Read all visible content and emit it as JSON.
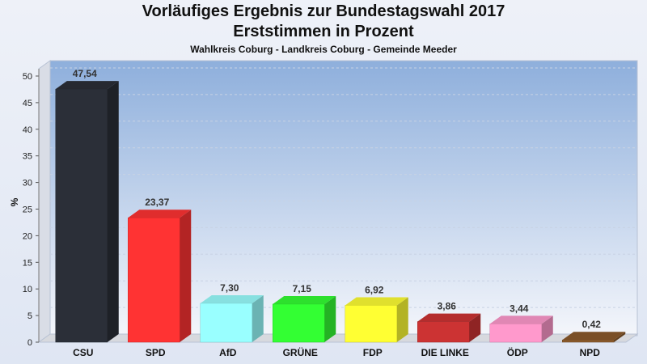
{
  "chart_data": {
    "type": "bar",
    "title": "Vorläufiges Ergebnis zur Bundestagswahl 2017",
    "subtitle": "Erststimmen in Prozent",
    "subsubtitle": "Wahlkreis Coburg - Landkreis Coburg - Gemeinde Meeder",
    "ylabel": "%",
    "ylim": [
      0,
      50
    ],
    "yticks": [
      0,
      5,
      10,
      15,
      20,
      25,
      30,
      35,
      40,
      45,
      50
    ],
    "grid": true,
    "categories": [
      "CSU",
      "SPD",
      "AfD",
      "GRÜNE",
      "FDP",
      "DIE LINKE",
      "ÖDP",
      "NPD"
    ],
    "values": [
      47.54,
      23.37,
      7.3,
      7.15,
      6.92,
      3.86,
      3.44,
      0.42
    ],
    "value_labels": [
      "47,54",
      "23,37",
      "7,30",
      "7,15",
      "6,92",
      "3,86",
      "3,44",
      "0,42"
    ],
    "colors": [
      "#2b2f38",
      "#ff3333",
      "#99ffff",
      "#33ff33",
      "#ffff33",
      "#cc3333",
      "#ff99cc",
      "#8b5a2b"
    ]
  }
}
